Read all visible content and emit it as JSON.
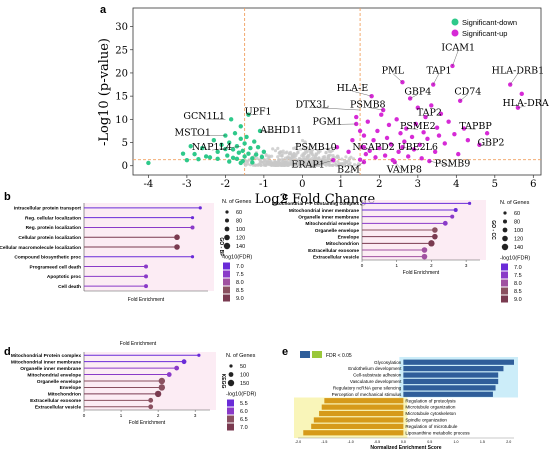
{
  "panel_labels": [
    "a",
    "b",
    "c",
    "d",
    "e"
  ],
  "colors": {
    "sig_down": "#2ec98a",
    "sig_up": "#d62ad6",
    "nonsig": "#c8c8c8",
    "threshold": "#f0a060",
    "fdr_scale": [
      "#6a2bd8",
      "#8a3ac8",
      "#a050a0",
      "#8a5060",
      "#7a3a50"
    ],
    "bar_up": "#2f5e9a",
    "bar_down": "#d69a1a",
    "halo_up": "#bfe8f8",
    "halo_down": "#f8f2a8"
  },
  "chart_data": [
    {
      "id": "a",
      "type": "scatter",
      "xlabel": "Log2 Fold Change",
      "ylabel": "-Log10 (p-value)",
      "xlim": [
        -4.4,
        6.2
      ],
      "ylim": [
        -2,
        34
      ],
      "xticks": [
        "-4",
        "-3",
        "-2",
        "-1",
        "0",
        "1",
        "2",
        "3",
        "4",
        "5",
        "6"
      ],
      "yticks": [
        "0",
        "5",
        "10",
        "15",
        "20",
        "25",
        "30"
      ],
      "legend": {
        "position": "top-right",
        "entries": [
          "Significant-down",
          "Significant-up"
        ]
      },
      "thresholds": {
        "x": [
          -1.5,
          1.5
        ],
        "y": 1.3
      },
      "labels": [
        {
          "gene": "ICAM1",
          "x": 3.9,
          "y": 21.5,
          "lx": 4.05,
          "ly": 25.3
        },
        {
          "gene": "TAP1",
          "x": 3.4,
          "y": 17.5,
          "lx": 3.55,
          "ly": 20.3
        },
        {
          "gene": "HLA-DRB1",
          "x": 5.4,
          "y": 17.5,
          "lx": 5.6,
          "ly": 20.3
        },
        {
          "gene": "PML",
          "x": 2.6,
          "y": 18.0,
          "lx": 2.35,
          "ly": 20.3
        },
        {
          "gene": "HLA-E",
          "x": 1.8,
          "y": 15.0,
          "lx": 1.3,
          "ly": 16.5
        },
        {
          "gene": "GBP4",
          "x": 2.8,
          "y": 14.5,
          "lx": 3.0,
          "ly": 15.8
        },
        {
          "gene": "CD74",
          "x": 4.1,
          "y": 14.0,
          "lx": 4.3,
          "ly": 15.8
        },
        {
          "gene": "HLA-DRA",
          "x": 5.6,
          "y": 12.5,
          "lx": 5.8,
          "ly": 13.3
        },
        {
          "gene": "DTX3L",
          "x": 1.5,
          "y": 12.0,
          "lx": 0.25,
          "ly": 13.0
        },
        {
          "gene": "PSMB8",
          "x": 2.1,
          "y": 12.0,
          "lx": 1.7,
          "ly": 13.0
        },
        {
          "gene": "TAP2",
          "x": 3.2,
          "y": 10.5,
          "lx": 3.3,
          "ly": 11.3
        },
        {
          "gene": "GCN1L1",
          "x": -2.0,
          "y": 10.0,
          "lx": -2.55,
          "ly": 10.5
        },
        {
          "gene": "UPF1",
          "x": -1.4,
          "y": 11.0,
          "lx": -1.15,
          "ly": 11.5
        },
        {
          "gene": "PGM1",
          "x": 1.4,
          "y": 9.0,
          "lx": 0.65,
          "ly": 9.3
        },
        {
          "gene": "PSME2",
          "x": 2.7,
          "y": 8.0,
          "lx": 3.0,
          "ly": 8.3
        },
        {
          "gene": "TAPBP",
          "x": 4.2,
          "y": 8.0,
          "lx": 4.5,
          "ly": 8.3
        },
        {
          "gene": "ABHD11",
          "x": -1.1,
          "y": 7.5,
          "lx": -0.55,
          "ly": 7.5
        },
        {
          "gene": "MSTO1",
          "x": -2.0,
          "y": 6.5,
          "lx": -2.85,
          "ly": 7.0
        },
        {
          "gene": "GBP2",
          "x": 4.6,
          "y": 4.5,
          "lx": 4.9,
          "ly": 4.8
        },
        {
          "gene": "PSMB10",
          "x": 0.9,
          "y": 4.0,
          "lx": 0.35,
          "ly": 3.8
        },
        {
          "gene": "NCAPD2",
          "x": 1.6,
          "y": 4.0,
          "lx": 1.85,
          "ly": 3.8
        },
        {
          "gene": "UBE2L6",
          "x": 2.6,
          "y": 4.0,
          "lx": 3.0,
          "ly": 3.8
        },
        {
          "gene": "NAP1L4",
          "x": -1.6,
          "y": 4.2,
          "lx": -2.35,
          "ly": 3.8
        },
        {
          "gene": "PSMB9",
          "x": 3.3,
          "y": 1.0,
          "lx": 3.9,
          "ly": 0.3
        },
        {
          "gene": "ERAP1",
          "x": 0.8,
          "y": 1.2,
          "lx": 0.15,
          "ly": 0.0
        },
        {
          "gene": "B2M",
          "x": 1.6,
          "y": 0.8,
          "lx": 1.2,
          "ly": -1.0
        },
        {
          "gene": "VAMP8",
          "x": 2.4,
          "y": 0.8,
          "lx": 2.65,
          "ly": -1.0
        }
      ],
      "points_down": [
        [
          -4.0,
          0.6
        ],
        [
          -3.0,
          1.2
        ],
        [
          -2.8,
          2.5
        ],
        [
          -2.6,
          3.8
        ],
        [
          -2.4,
          1.8
        ],
        [
          -2.3,
          5.5
        ],
        [
          -2.2,
          3.0
        ],
        [
          -2.1,
          4.5
        ],
        [
          -2.0,
          6.5
        ],
        [
          -1.95,
          2.2
        ],
        [
          -1.9,
          5.0
        ],
        [
          -1.85,
          10.0
        ],
        [
          -1.8,
          3.5
        ],
        [
          -1.75,
          7.0
        ],
        [
          -1.7,
          1.5
        ],
        [
          -1.7,
          4.2
        ],
        [
          -1.65,
          2.8
        ],
        [
          -1.6,
          5.8
        ],
        [
          -1.6,
          8.5
        ],
        [
          -1.55,
          1.0
        ],
        [
          -1.55,
          3.2
        ],
        [
          -1.5,
          2.0
        ],
        [
          -1.5,
          4.8
        ],
        [
          -1.45,
          6.2
        ],
        [
          -1.4,
          11.0
        ],
        [
          -1.4,
          2.6
        ],
        [
          -1.35,
          3.8
        ],
        [
          -1.3,
          1.6
        ],
        [
          -1.25,
          5.2
        ],
        [
          -1.2,
          2.4
        ],
        [
          -1.15,
          4.0
        ],
        [
          -1.1,
          7.5
        ],
        [
          -1.05,
          1.9
        ],
        [
          -1.0,
          3.0
        ],
        [
          -2.5,
          2.0
        ],
        [
          -2.7,
          1.4
        ],
        [
          -3.1,
          2.6
        ],
        [
          -2.9,
          4.2
        ],
        [
          -1.9,
          0.9
        ],
        [
          -1.8,
          1.7
        ],
        [
          -1.3,
          0.7
        ],
        [
          -2.2,
          1.5
        ],
        [
          -2.0,
          3.6
        ],
        [
          -1.6,
          0.6
        ]
      ],
      "points_up": [
        [
          1.5,
          1.3
        ],
        [
          1.55,
          4.0
        ],
        [
          1.6,
          0.8
        ],
        [
          1.6,
          6.5
        ],
        [
          1.65,
          2.5
        ],
        [
          1.7,
          9.5
        ],
        [
          1.75,
          3.2
        ],
        [
          1.8,
          15.0
        ],
        [
          1.85,
          5.5
        ],
        [
          1.9,
          1.8
        ],
        [
          1.95,
          7.5
        ],
        [
          2.0,
          3.8
        ],
        [
          2.05,
          11.0
        ],
        [
          2.1,
          12.0
        ],
        [
          2.15,
          2.2
        ],
        [
          2.2,
          6.0
        ],
        [
          2.25,
          8.8
        ],
        [
          2.3,
          4.6
        ],
        [
          2.35,
          1.2
        ],
        [
          2.4,
          0.8
        ],
        [
          2.45,
          10.0
        ],
        [
          2.5,
          3.0
        ],
        [
          2.55,
          7.0
        ],
        [
          2.6,
          4.0
        ],
        [
          2.6,
          18.0
        ],
        [
          2.65,
          5.2
        ],
        [
          2.7,
          8.0
        ],
        [
          2.75,
          2.0
        ],
        [
          2.8,
          14.5
        ],
        [
          2.85,
          6.2
        ],
        [
          2.9,
          3.5
        ],
        [
          2.95,
          9.0
        ],
        [
          3.0,
          12.5
        ],
        [
          3.05,
          4.5
        ],
        [
          3.1,
          1.6
        ],
        [
          3.15,
          7.2
        ],
        [
          3.2,
          10.5
        ],
        [
          3.25,
          5.8
        ],
        [
          3.3,
          1.0
        ],
        [
          3.35,
          13.0
        ],
        [
          3.4,
          17.5
        ],
        [
          3.45,
          3.0
        ],
        [
          3.5,
          8.2
        ],
        [
          3.55,
          6.5
        ],
        [
          3.6,
          11.2
        ],
        [
          3.7,
          4.8
        ],
        [
          3.8,
          9.5
        ],
        [
          3.9,
          21.5
        ],
        [
          3.95,
          6.8
        ],
        [
          4.05,
          2.5
        ],
        [
          4.1,
          14.0
        ],
        [
          4.2,
          8.0
        ],
        [
          4.3,
          5.5
        ],
        [
          4.6,
          4.5
        ],
        [
          4.8,
          7.0
        ],
        [
          5.4,
          17.5
        ],
        [
          5.6,
          12.5
        ],
        [
          5.7,
          15.5
        ],
        [
          1.4,
          9.0
        ],
        [
          1.6,
          4.0
        ],
        [
          0.9,
          4.0
        ],
        [
          0.8,
          1.2
        ],
        [
          1.4,
          10.5
        ],
        [
          1.5,
          7.5
        ],
        [
          1.3,
          5.5
        ],
        [
          1.2,
          3.0
        ]
      ]
    },
    {
      "id": "b",
      "type": "bar",
      "style": "lollipop",
      "categories": [
        "Intracellular protein transport",
        "Reg. cellular localization",
        "Reg. protein localization",
        "Cellular protein localization",
        "Cellular macromolecule localization",
        "Compound biosynthetic proc",
        "Programeed cell death",
        "Apoptotic proc",
        "Cell death"
      ],
      "values": [
        3.0,
        2.8,
        2.8,
        2.4,
        2.4,
        2.8,
        1.6,
        1.6,
        1.6
      ],
      "sizes": [
        60,
        60,
        80,
        120,
        120,
        60,
        80,
        80,
        80
      ],
      "fdr": [
        7.0,
        7.0,
        7.5,
        9.0,
        9.0,
        7.0,
        7.5,
        7.5,
        7.5
      ],
      "xlabel": "Fold Enrichment",
      "side_label": "GO - BP",
      "xlim": [
        0,
        3.2
      ],
      "size_legend": {
        "title": "N. of Genes",
        "values": [
          "60",
          "80",
          "100",
          "120",
          "140"
        ]
      },
      "color_legend": {
        "title": "-log10(FDR)",
        "values": [
          "7.0",
          "7.5",
          "8.0",
          "8.5",
          "9.0"
        ]
      }
    },
    {
      "id": "c",
      "type": "bar",
      "style": "lollipop",
      "categories": [
        "Mitochondrial P-P containing complex",
        "Mitochondrial inner membrane",
        "Organelle inner membrane",
        "Mitochondrial envelope",
        "Organelle envelope",
        "Envelope",
        "Mitochondrion",
        "Extracellular exosome",
        "Extracellular vesicle"
      ],
      "values": [
        3.1,
        2.7,
        2.6,
        2.4,
        2.1,
        2.1,
        2.0,
        1.8,
        1.8
      ],
      "sizes": [
        60,
        80,
        80,
        100,
        120,
        120,
        140,
        120,
        120
      ],
      "fdr": [
        7.0,
        7.0,
        7.5,
        7.5,
        8.5,
        9.0,
        9.0,
        8.0,
        8.0
      ],
      "xlabel": "Fold Enrichment",
      "xticks": [
        "0",
        "1",
        "2",
        "3"
      ],
      "side_label": "GO - CC",
      "xlim": [
        0,
        3.4
      ],
      "size_legend": {
        "title": "N. of Genes",
        "values": [
          "60",
          "80",
          "100",
          "120",
          "140"
        ]
      },
      "color_legend": {
        "title": "-log10(FDR)",
        "values": [
          "7.0",
          "7.5",
          "8.0",
          "8.5",
          "9.0"
        ]
      }
    },
    {
      "id": "d",
      "type": "bar",
      "style": "lollipop",
      "title": "Fold Enrichment",
      "categories": [
        "Mitochondrial Protein complex",
        "Mitochondrial inner membrane",
        "Organelle inner membrane",
        "Mitochondrial envelope",
        "Organelle envelope",
        "Envelope",
        "Mitochondrion",
        "Extracellular exosome",
        "Extracellular vesicle"
      ],
      "values": [
        3.1,
        2.7,
        2.5,
        2.3,
        2.1,
        2.1,
        2.0,
        1.8,
        1.8
      ],
      "sizes": [
        50,
        100,
        100,
        100,
        150,
        150,
        150,
        100,
        100
      ],
      "fdr": [
        5.5,
        5.5,
        6.0,
        6.0,
        6.5,
        6.5,
        7.0,
        6.5,
        6.5
      ],
      "xlabel": "Fold Enrichment",
      "xticks": [
        "0",
        "1",
        "2",
        "3"
      ],
      "side_label": "KEGG",
      "xlim": [
        0,
        3.4
      ],
      "size_legend": {
        "title": "N. of Genes",
        "values": [
          "50",
          "100",
          "150"
        ]
      },
      "color_legend": {
        "title": "-log10(FDR)",
        "values": [
          "5.5",
          "6.0",
          "6.5",
          "7.0"
        ]
      }
    },
    {
      "id": "e",
      "type": "bar",
      "orientation": "horizontal",
      "legend_label": "FDR < 0.05",
      "categories": [
        "Glycosylation",
        "Endothelium development",
        "Cell-substrate adhesion",
        "Vasculature development",
        "Regulatory ncRNA gene silencing",
        "Perception of mechanical stimulus",
        "Regulation of proteolysis",
        "Microtubule organization",
        "Microtubule cytoskeleton",
        "Spindle organization",
        "Regulation of microtubule",
        "Lipoxanthine metabolic process"
      ],
      "values": [
        2.1,
        1.9,
        1.8,
        1.8,
        1.75,
        1.7,
        -1.5,
        -1.55,
        -1.6,
        -1.7,
        -1.75,
        -1.9
      ],
      "xlabel": "Normalized Enrichment Score",
      "xlim": [
        -2.0,
        2.1
      ],
      "xticks": [
        "-2.0",
        "-1.5",
        "-1.0",
        "-0.5",
        "0.0",
        "0.5",
        "1.0",
        "1.5",
        "2.0"
      ]
    }
  ]
}
